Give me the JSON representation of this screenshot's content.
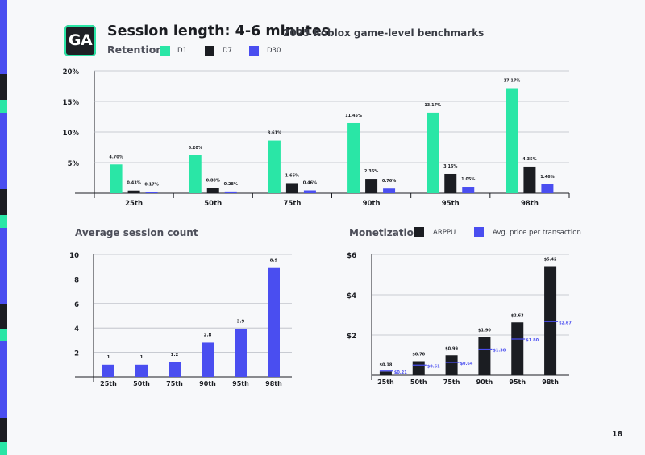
{
  "header": {
    "logo_text": "GA",
    "title": "Session length: 4-6 minutes",
    "subtitle": "2025 Roblox game-level benchmarks"
  },
  "page_number": "18",
  "colors": {
    "d1": "#2ae6a6",
    "d7": "#1b1d22",
    "d30": "#4a4ef0",
    "accent": "#2ae6a6"
  },
  "chart_data": [
    {
      "type": "bar",
      "title": "Retention",
      "legend": [
        "D1",
        "D7",
        "D30"
      ],
      "categories": [
        "25th",
        "50th",
        "75th",
        "90th",
        "95th",
        "98th"
      ],
      "ylim": [
        0,
        20
      ],
      "yticks": [
        5,
        10,
        15,
        20
      ],
      "ytick_labels": [
        "5%",
        "10%",
        "15%",
        "20%"
      ],
      "series": [
        {
          "name": "D1",
          "values": [
            4.7,
            6.2,
            8.61,
            11.45,
            13.17,
            17.17
          ],
          "labels": [
            "4.70%",
            "6.20%",
            "8.61%",
            "11.45%",
            "13.17%",
            "17.17%"
          ]
        },
        {
          "name": "D7",
          "values": [
            0.43,
            0.88,
            1.65,
            2.36,
            3.16,
            4.35
          ],
          "labels": [
            "0.43%",
            "0.88%",
            "1.65%",
            "2.36%",
            "3.16%",
            "4.35%"
          ]
        },
        {
          "name": "D30",
          "values": [
            0.17,
            0.28,
            0.46,
            0.76,
            1.05,
            1.46
          ],
          "labels": [
            "0.17%",
            "0.28%",
            "0.46%",
            "0.76%",
            "1.05%",
            "1.46%"
          ]
        }
      ]
    },
    {
      "type": "bar",
      "title": "Average session count",
      "categories": [
        "25th",
        "50th",
        "75th",
        "90th",
        "95th",
        "98th"
      ],
      "ylim": [
        0,
        10
      ],
      "yticks": [
        2,
        4,
        6,
        8,
        10
      ],
      "ytick_labels": [
        "2",
        "4",
        "6",
        "8",
        "10"
      ],
      "values": [
        1,
        1,
        1.2,
        2.8,
        3.9,
        8.9
      ],
      "labels": [
        "1",
        "1",
        "1.2",
        "2.8",
        "3.9",
        "8.9"
      ]
    },
    {
      "type": "bar",
      "title": "Monetization",
      "legend": [
        "ARPPU",
        "Avg. price per transaction"
      ],
      "categories": [
        "25th",
        "50th",
        "75th",
        "90th",
        "95th",
        "98th"
      ],
      "ylim": [
        0,
        6
      ],
      "yticks": [
        2,
        4,
        6
      ],
      "ytick_labels": [
        "$2",
        "$4",
        "$6"
      ],
      "series": [
        {
          "name": "ARPPU",
          "values": [
            0.18,
            0.7,
            0.99,
            1.9,
            2.63,
            5.42
          ],
          "labels": [
            "$0.18",
            "$0.70",
            "$0.99",
            "$1.90",
            "$2.63",
            "$5.42"
          ]
        },
        {
          "name": "Avg. price per transaction",
          "values": [
            0.21,
            0.51,
            0.64,
            1.3,
            1.8,
            2.67
          ],
          "labels": [
            "$0.21",
            "$0.51",
            "$0.64",
            "$1.30",
            "$1.80",
            "$2.67"
          ]
        }
      ]
    }
  ]
}
